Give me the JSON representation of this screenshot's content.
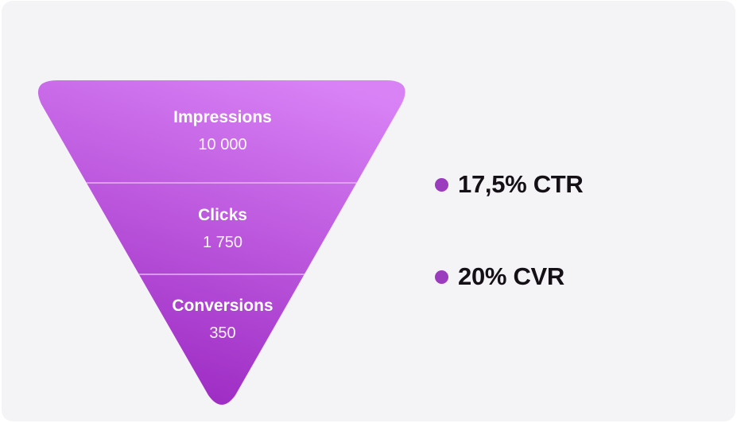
{
  "funnel": {
    "stages": [
      {
        "label": "Impressions",
        "value": "10 000"
      },
      {
        "label": "Clicks",
        "value": "1 750"
      },
      {
        "label": "Conversions",
        "value": "350"
      }
    ],
    "colors": {
      "top": "#d982f6",
      "bottom": "#9e2cc4",
      "divider": "#e6b6f2"
    }
  },
  "metrics": [
    {
      "label": "17,5% CTR",
      "dot_color": "#9b3bbd"
    },
    {
      "label": "20% CVR",
      "dot_color": "#9b3bbd"
    }
  ]
}
